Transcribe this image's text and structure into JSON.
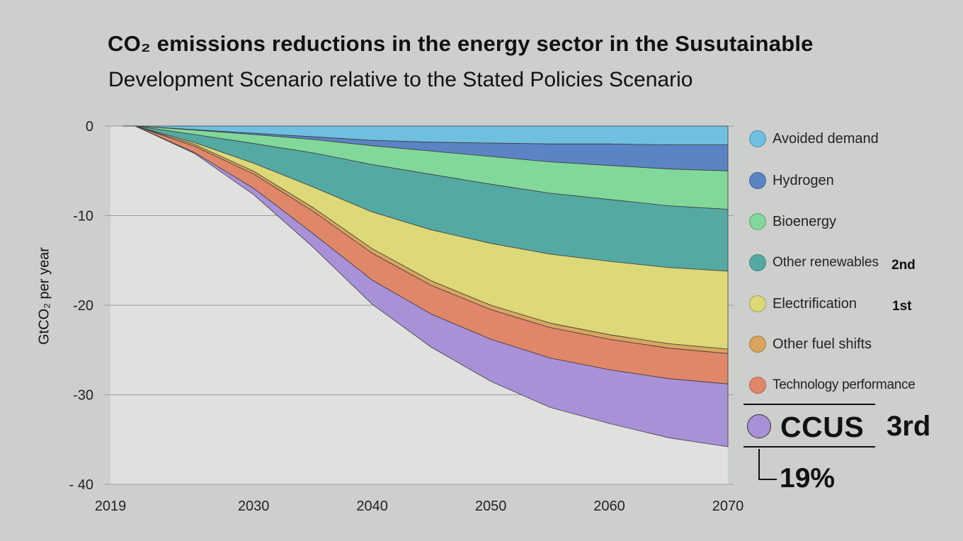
{
  "title": "CO₂ emissions reductions in the energy sector in the Susutainable",
  "subtitle": "Development Scenario relative to the Stated Policies Scenario",
  "chart_data": {
    "type": "area",
    "stacked": true,
    "title": "CO₂ emissions reductions in the energy sector in the Susutainable Development Scenario relative to the Stated Policies Scenario",
    "xlabel": "",
    "ylabel": "GtCO₂ per year",
    "xlim": [
      2019,
      2070
    ],
    "ylim": [
      -40,
      0
    ],
    "grid": true,
    "x_ticks": [
      "2019",
      "2030",
      "2040",
      "2050",
      "2060",
      "2070"
    ],
    "y_ticks": [
      "0",
      "-10",
      "-20",
      "-30",
      "- 40"
    ],
    "x": [
      2020,
      2025,
      2030,
      2035,
      2040,
      2045,
      2050,
      2055,
      2060,
      2065,
      2070
    ],
    "series": [
      {
        "name": "Avoided demand",
        "color": "#6fc0e0",
        "values": [
          0.0,
          -0.4,
          -0.8,
          -1.2,
          -1.6,
          -1.8,
          -1.9,
          -2.0,
          -2.0,
          -2.1,
          -2.1
        ]
      },
      {
        "name": "Hydrogen",
        "color": "#5a84c4",
        "values": [
          0.0,
          -0.05,
          -0.15,
          -0.3,
          -0.6,
          -1.0,
          -1.5,
          -2.0,
          -2.4,
          -2.7,
          -2.9
        ]
      },
      {
        "name": "Bioenergy",
        "color": "#82d89a",
        "values": [
          0.0,
          -0.5,
          -1.0,
          -1.5,
          -2.1,
          -2.6,
          -3.1,
          -3.5,
          -3.8,
          -4.1,
          -4.3
        ]
      },
      {
        "name": "Other renewables",
        "color": "#55a9a3",
        "values": [
          0.0,
          -0.9,
          -2.2,
          -3.8,
          -5.3,
          -6.2,
          -6.6,
          -6.8,
          -6.9,
          -6.9,
          -6.9
        ]
      },
      {
        "name": "Electrification",
        "color": "#ddd878",
        "values": [
          0.0,
          -0.2,
          -0.9,
          -2.3,
          -4.1,
          -5.7,
          -6.9,
          -7.7,
          -8.2,
          -8.5,
          -8.7
        ]
      },
      {
        "name": "Other fuel shifts",
        "color": "#d9a55e",
        "values": [
          0.0,
          -0.2,
          -0.3,
          -0.4,
          -0.5,
          -0.5,
          -0.5,
          -0.5,
          -0.5,
          -0.5,
          -0.5
        ]
      },
      {
        "name": "Technology performance",
        "color": "#e0876a",
        "values": [
          0.0,
          -0.7,
          -1.6,
          -2.5,
          -3.0,
          -3.2,
          -3.3,
          -3.4,
          -3.4,
          -3.4,
          -3.4
        ]
      },
      {
        "name": "CCUS",
        "color": "#a991d8",
        "values": [
          0.0,
          -0.1,
          -0.7,
          -1.5,
          -2.7,
          -3.7,
          -4.7,
          -5.5,
          -6.0,
          -6.6,
          -7.0
        ]
      }
    ],
    "annotations": [
      {
        "series": "Electrification",
        "text": "1st"
      },
      {
        "series": "Other renewables",
        "text": "2nd"
      },
      {
        "series": "CCUS",
        "text": "3rd"
      },
      {
        "series": "CCUS",
        "text": "19%"
      }
    ]
  },
  "legend": [
    {
      "label": "Avoided demand",
      "color": "#6fc0e0"
    },
    {
      "label": "Hydrogen",
      "color": "#5a84c4"
    },
    {
      "label": "Bioenergy",
      "color": "#82d89a"
    },
    {
      "label": "Other renewables",
      "color": "#55a9a3",
      "rank": "2nd"
    },
    {
      "label": "Electrification",
      "color": "#ddd878",
      "rank": "1st"
    },
    {
      "label": "Other fuel shifts",
      "color": "#d9a55e"
    },
    {
      "label": "Technology performance",
      "color": "#e0876a"
    }
  ],
  "ccus": {
    "label": "CCUS",
    "rank": "3rd",
    "share": "19%",
    "color": "#a991d8"
  }
}
